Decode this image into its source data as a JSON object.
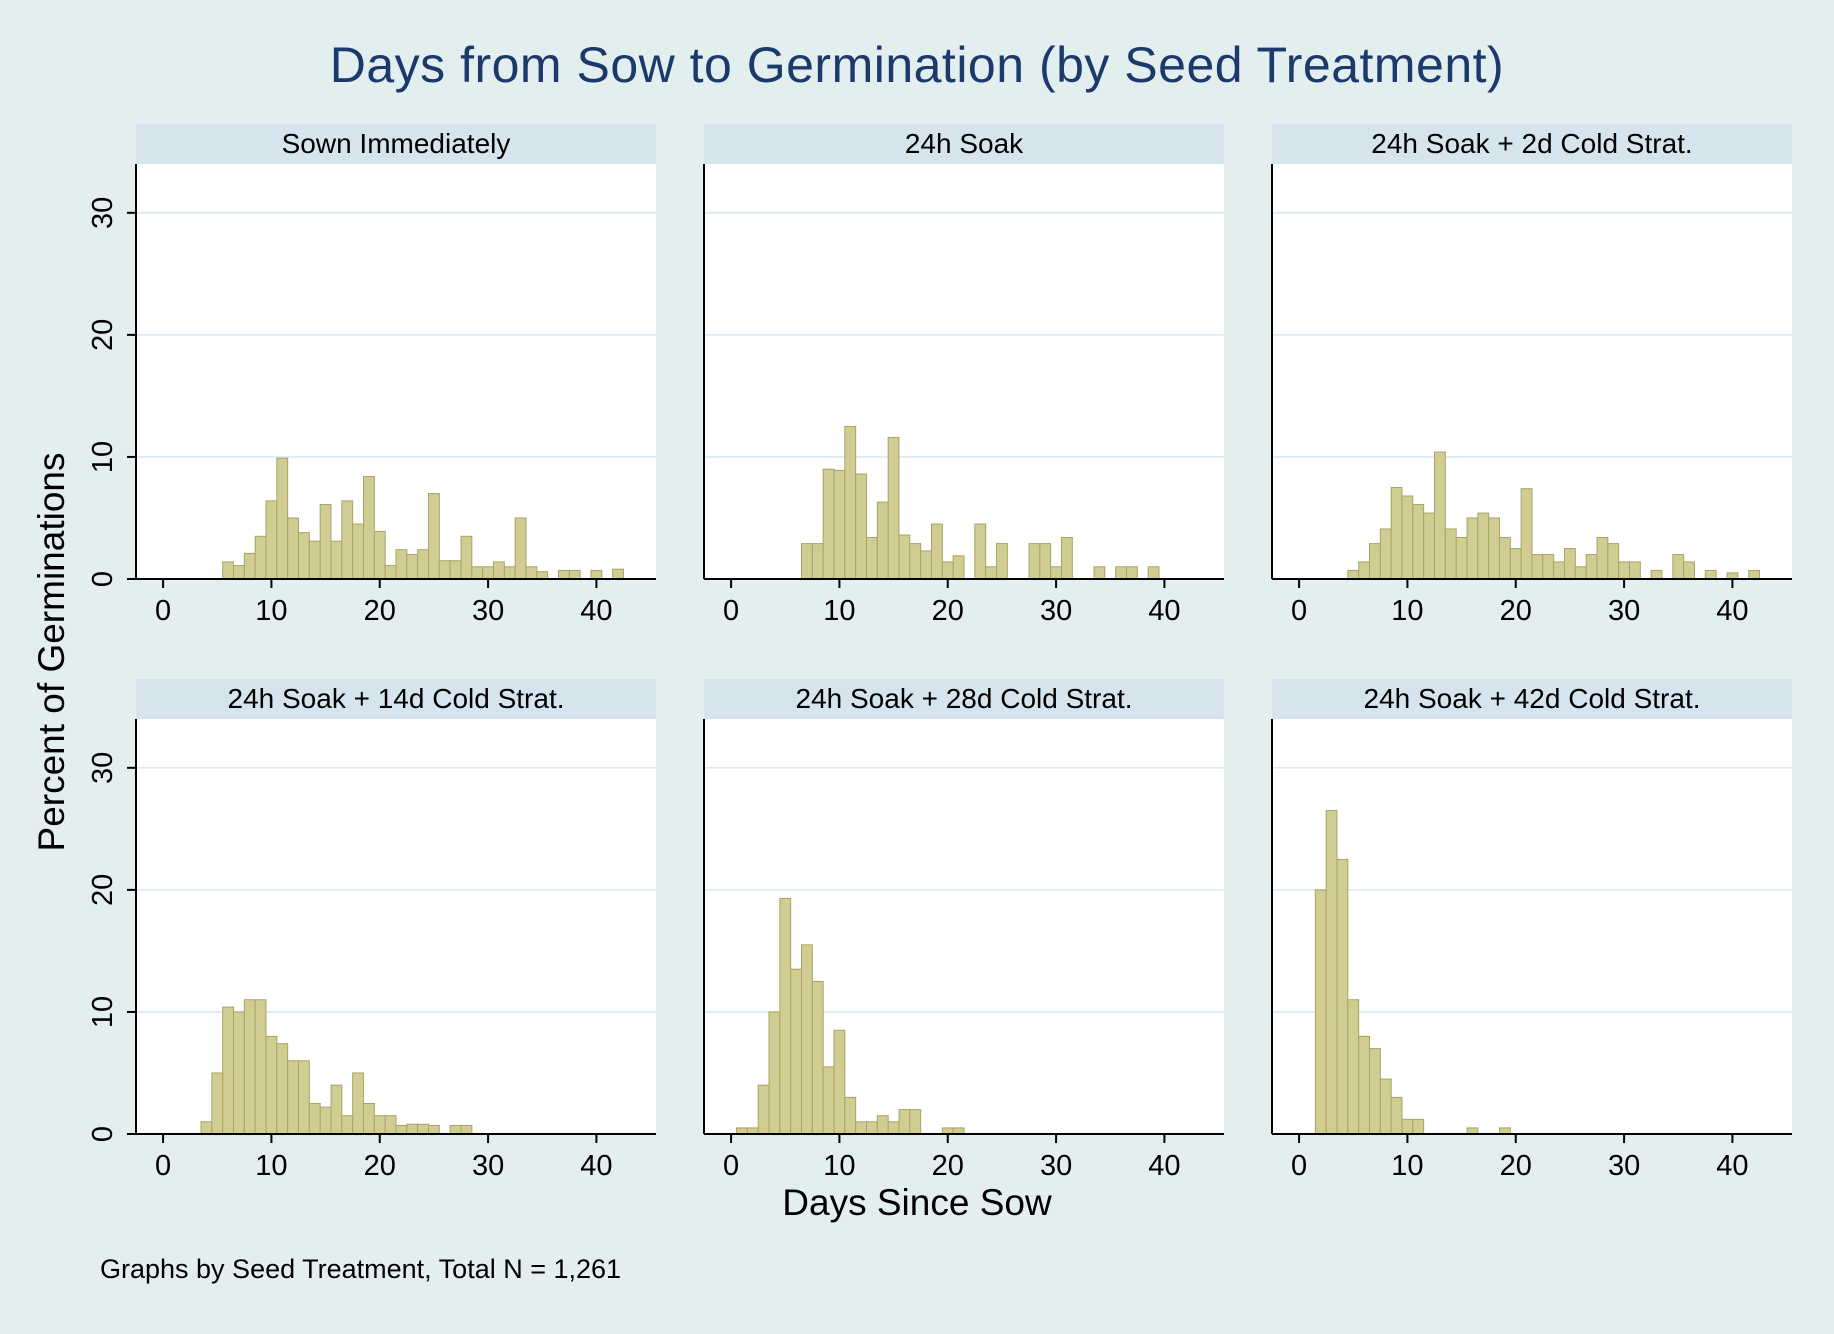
{
  "figure": {
    "title": "Days from Sow to Germination (by Seed Treatment)",
    "y_axis_title": "Percent of Germinations",
    "x_axis_title": "Days Since Sow",
    "note": "Graphs by Seed Treatment, Total N = 1,261"
  },
  "colors": {
    "background": "#e3eeee",
    "banner": "#d6e4ee",
    "plot_background": "#ffffff",
    "gridline": "#d9e8f3",
    "bar_fill": "#d1cd92",
    "bar_stroke": "#a8a464",
    "axis": "#000000",
    "title": "#1b3a6b"
  },
  "chart_data": {
    "type": "bar",
    "subtype": "faceted-histograms",
    "layout": "2 rows x 3 columns, shared axes",
    "title": "Days from Sow to Germination (by Seed Treatment)",
    "xlabel": "Days Since Sow",
    "ylabel": "Percent of Germinations",
    "note": "Graphs by Seed Treatment, Total N = 1,261",
    "x_domain": [
      -2.5,
      45.5
    ],
    "y_domain": [
      0,
      34
    ],
    "x_ticks": [
      0,
      10,
      20,
      30,
      40
    ],
    "y_ticks": [
      0,
      10,
      20,
      30
    ],
    "bin_width": 1,
    "grid": "horizontal gridlines at y ticks",
    "panels": [
      {
        "title": "Sown Immediately",
        "show_y_labels": true,
        "bars": [
          [
            6,
            1.4
          ],
          [
            7,
            1.1
          ],
          [
            8,
            2.1
          ],
          [
            9,
            3.5
          ],
          [
            10,
            6.4
          ],
          [
            11,
            9.9
          ],
          [
            12,
            5.0
          ],
          [
            13,
            3.8
          ],
          [
            14,
            3.1
          ],
          [
            15,
            6.1
          ],
          [
            16,
            3.1
          ],
          [
            17,
            6.4
          ],
          [
            18,
            4.5
          ],
          [
            19,
            8.4
          ],
          [
            20,
            3.9
          ],
          [
            21,
            1.1
          ],
          [
            22,
            2.4
          ],
          [
            23,
            2.0
          ],
          [
            24,
            2.4
          ],
          [
            25,
            7.0
          ],
          [
            26,
            1.5
          ],
          [
            27,
            1.5
          ],
          [
            28,
            3.5
          ],
          [
            29,
            1.0
          ],
          [
            30,
            1.0
          ],
          [
            31,
            1.4
          ],
          [
            32,
            1.0
          ],
          [
            33,
            5.0
          ],
          [
            34,
            1.0
          ],
          [
            35,
            0.6
          ],
          [
            37,
            0.7
          ],
          [
            38,
            0.7
          ],
          [
            40,
            0.7
          ],
          [
            42,
            0.8
          ]
        ]
      },
      {
        "title": "24h Soak",
        "show_y_labels": false,
        "bars": [
          [
            7,
            2.9
          ],
          [
            8,
            2.9
          ],
          [
            9,
            9.0
          ],
          [
            10,
            8.9
          ],
          [
            11,
            12.5
          ],
          [
            12,
            8.6
          ],
          [
            13,
            3.4
          ],
          [
            14,
            6.3
          ],
          [
            15,
            11.6
          ],
          [
            16,
            3.6
          ],
          [
            17,
            2.9
          ],
          [
            18,
            2.3
          ],
          [
            19,
            4.5
          ],
          [
            20,
            1.4
          ],
          [
            21,
            1.9
          ],
          [
            23,
            4.5
          ],
          [
            24,
            1.0
          ],
          [
            25,
            2.9
          ],
          [
            28,
            2.9
          ],
          [
            29,
            2.9
          ],
          [
            30,
            1.0
          ],
          [
            31,
            3.4
          ],
          [
            34,
            1.0
          ],
          [
            36,
            1.0
          ],
          [
            37,
            1.0
          ],
          [
            39,
            1.0
          ]
        ]
      },
      {
        "title": "24h Soak + 2d Cold Strat.",
        "show_y_labels": false,
        "bars": [
          [
            5,
            0.7
          ],
          [
            6,
            1.4
          ],
          [
            7,
            2.9
          ],
          [
            8,
            4.1
          ],
          [
            9,
            7.5
          ],
          [
            10,
            6.8
          ],
          [
            11,
            6.1
          ],
          [
            12,
            5.4
          ],
          [
            13,
            10.4
          ],
          [
            14,
            4.1
          ],
          [
            15,
            3.4
          ],
          [
            16,
            5.0
          ],
          [
            17,
            5.4
          ],
          [
            18,
            5.0
          ],
          [
            19,
            3.4
          ],
          [
            20,
            2.5
          ],
          [
            21,
            7.4
          ],
          [
            22,
            2.0
          ],
          [
            23,
            2.0
          ],
          [
            24,
            1.4
          ],
          [
            25,
            2.5
          ],
          [
            26,
            1.0
          ],
          [
            27,
            2.0
          ],
          [
            28,
            3.4
          ],
          [
            29,
            2.9
          ],
          [
            30,
            1.4
          ],
          [
            31,
            1.4
          ],
          [
            33,
            0.7
          ],
          [
            35,
            2.0
          ],
          [
            36,
            1.4
          ],
          [
            38,
            0.7
          ],
          [
            40,
            0.5
          ],
          [
            42,
            0.7
          ]
        ]
      },
      {
        "title": "24h Soak + 14d Cold Strat.",
        "show_y_labels": true,
        "bars": [
          [
            4,
            1.0
          ],
          [
            5,
            5.0
          ],
          [
            6,
            10.4
          ],
          [
            7,
            10.0
          ],
          [
            8,
            11.0
          ],
          [
            9,
            11.0
          ],
          [
            10,
            8.0
          ],
          [
            11,
            7.4
          ],
          [
            12,
            6.0
          ],
          [
            13,
            6.0
          ],
          [
            14,
            2.5
          ],
          [
            15,
            2.2
          ],
          [
            16,
            4.0
          ],
          [
            17,
            1.5
          ],
          [
            18,
            5.0
          ],
          [
            19,
            2.5
          ],
          [
            20,
            1.5
          ],
          [
            21,
            1.5
          ],
          [
            22,
            0.7
          ],
          [
            23,
            0.8
          ],
          [
            24,
            0.8
          ],
          [
            25,
            0.7
          ],
          [
            27,
            0.7
          ],
          [
            28,
            0.7
          ]
        ]
      },
      {
        "title": "24h Soak + 28d Cold Strat.",
        "show_y_labels": false,
        "bars": [
          [
            1,
            0.5
          ],
          [
            2,
            0.5
          ],
          [
            3,
            4.0
          ],
          [
            4,
            10.0
          ],
          [
            5,
            19.3
          ],
          [
            6,
            13.5
          ],
          [
            7,
            15.5
          ],
          [
            8,
            12.5
          ],
          [
            9,
            5.5
          ],
          [
            10,
            8.5
          ],
          [
            11,
            3.0
          ],
          [
            12,
            1.0
          ],
          [
            13,
            1.0
          ],
          [
            14,
            1.5
          ],
          [
            15,
            1.0
          ],
          [
            16,
            2.0
          ],
          [
            17,
            2.0
          ],
          [
            20,
            0.5
          ],
          [
            21,
            0.5
          ]
        ]
      },
      {
        "title": "24h Soak + 42d Cold Strat.",
        "show_y_labels": false,
        "bars": [
          [
            2,
            20.0
          ],
          [
            3,
            26.5
          ],
          [
            4,
            22.5
          ],
          [
            5,
            11.0
          ],
          [
            6,
            8.0
          ],
          [
            7,
            7.0
          ],
          [
            8,
            4.5
          ],
          [
            9,
            3.0
          ],
          [
            10,
            1.2
          ],
          [
            11,
            1.2
          ],
          [
            16,
            0.5
          ],
          [
            19,
            0.5
          ]
        ]
      }
    ]
  }
}
